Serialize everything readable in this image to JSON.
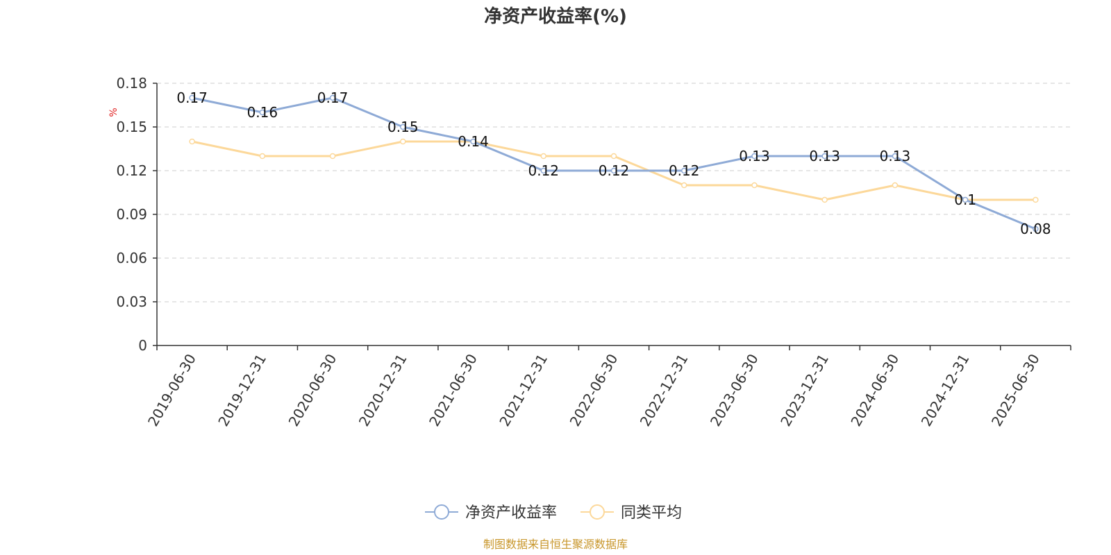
{
  "chart_data": {
    "type": "line",
    "title": "净资产收益率(%)",
    "y_unit": "%",
    "categories": [
      "2019-06-30",
      "2019-12-31",
      "2020-06-30",
      "2020-12-31",
      "2021-06-30",
      "2021-12-31",
      "2022-06-30",
      "2022-12-31",
      "2023-06-30",
      "2023-12-31",
      "2024-06-30",
      "2024-12-31",
      "2025-06-30"
    ],
    "y_ticks": [
      "0",
      "0.03",
      "0.06",
      "0.09",
      "0.12",
      "0.15",
      "0.18"
    ],
    "ylim": [
      0,
      0.18
    ],
    "grid": true,
    "legend_position": "bottom-center",
    "series": [
      {
        "name": "净资产收益率",
        "color": "#8eaad6",
        "values": [
          0.17,
          0.16,
          0.17,
          0.15,
          0.14,
          0.12,
          0.12,
          0.12,
          0.13,
          0.13,
          0.13,
          0.1,
          0.08
        ],
        "labels": [
          "0.17",
          "0.16",
          "0.17",
          "0.15",
          "0.14",
          "0.12",
          "0.12",
          "0.12",
          "0.13",
          "0.13",
          "0.13",
          "0.1",
          "0.08"
        ]
      },
      {
        "name": "同类平均",
        "color": "#fcd89a",
        "values": [
          0.14,
          0.13,
          0.13,
          0.14,
          0.14,
          0.13,
          0.13,
          0.11,
          0.11,
          0.1,
          0.11,
          0.1,
          0.1
        ]
      }
    ],
    "source": "制图数据来自恒生聚源数据库"
  }
}
